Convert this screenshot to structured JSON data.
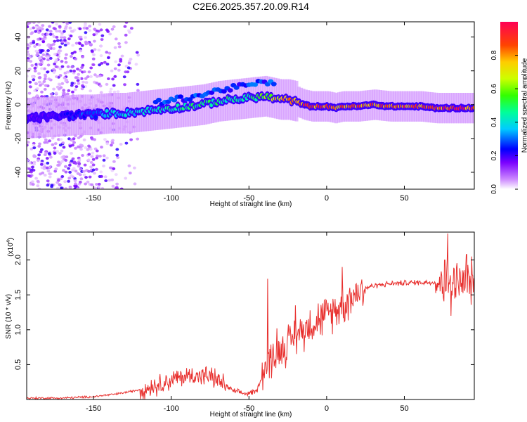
{
  "title": "C2E6.2025.357.20.09.R14",
  "chart_data": [
    {
      "type": "heatmap",
      "name": "spectrogram",
      "xlabel": "Height of straight line (km)",
      "ylabel": "Frequency (Hz)",
      "xlim": [
        -193,
        95
      ],
      "ylim": [
        -50,
        49
      ],
      "xticks": [
        -150,
        -100,
        -50,
        0,
        50
      ],
      "yticks": [
        -40,
        -20,
        0,
        20,
        40
      ],
      "colorbar": {
        "label": "Normalized spectral amplitude",
        "range": [
          0,
          1
        ],
        "ticks": [
          0.0,
          0.2,
          0.4,
          0.6,
          0.8
        ],
        "tick_labels": [
          "0.0",
          "0.2",
          "0.4",
          "0.6",
          "0.8"
        ]
      },
      "ridge": {
        "x": [
          -193,
          -175,
          -160,
          -150,
          -140,
          -130,
          -120,
          -110,
          -100,
          -90,
          -80,
          -70,
          -60,
          -50,
          -40,
          -35,
          -30,
          -25,
          -20,
          -15,
          -10,
          -5,
          0,
          5,
          10,
          20,
          30,
          40,
          50,
          60,
          70,
          80,
          95
        ],
        "freq": [
          -8,
          -7,
          -6,
          -6,
          -5,
          -5,
          -4,
          -3,
          -2,
          -1,
          0,
          2,
          3,
          4,
          5,
          4,
          3,
          3,
          2,
          0,
          -1,
          -1,
          -1,
          -2,
          -1,
          -1,
          0,
          -1,
          -1,
          -1,
          -2,
          -2,
          -2
        ],
        "amplitude": [
          0.2,
          0.2,
          0.3,
          0.3,
          0.4,
          0.4,
          0.4,
          0.45,
          0.45,
          0.5,
          0.5,
          0.5,
          0.5,
          0.5,
          0.6,
          0.7,
          0.8,
          0.8,
          0.85,
          0.9,
          0.9,
          0.9,
          0.9,
          0.85,
          0.9,
          0.9,
          0.9,
          0.9,
          0.9,
          0.9,
          0.95,
          0.95,
          0.95
        ]
      }
    },
    {
      "type": "line",
      "name": "snr",
      "xlabel": "Height of straight line (km)",
      "ylabel": "SNR (10 * v/v)",
      "scale_label": "(x10",
      "scale_exponent": "4",
      "scale_suffix": ")",
      "xlim": [
        -193,
        95
      ],
      "ylim": [
        0,
        2.4
      ],
      "xticks": [
        -150,
        -100,
        -50,
        0,
        50
      ],
      "yticks": [
        0.5,
        1.0,
        1.5,
        2.0
      ],
      "ytick_labels": [
        "0.5",
        "1.0",
        "1.5",
        "2.0"
      ],
      "units": "x10^4",
      "color": "#e8302e",
      "envelope": {
        "x": [
          -193,
          -170,
          -150,
          -135,
          -125,
          -115,
          -105,
          -95,
          -85,
          -75,
          -68,
          -60,
          -52,
          -45,
          -40,
          -35,
          -30,
          -25,
          -20,
          -15,
          -10,
          -5,
          0,
          5,
          10,
          15,
          20,
          25,
          30,
          40,
          50,
          60,
          70,
          75,
          80,
          85,
          90,
          95
        ],
        "value": [
          0.02,
          0.02,
          0.04,
          0.08,
          0.12,
          0.17,
          0.24,
          0.31,
          0.35,
          0.33,
          0.25,
          0.12,
          0.08,
          0.12,
          0.45,
          0.6,
          0.72,
          0.8,
          0.9,
          1.0,
          1.1,
          1.15,
          1.2,
          1.28,
          1.35,
          1.45,
          1.55,
          1.6,
          1.63,
          1.66,
          1.67,
          1.68,
          1.68,
          1.68,
          1.69,
          1.66,
          1.68,
          1.7
        ]
      },
      "spikes": [
        {
          "x": -38,
          "value": 1.73
        },
        {
          "x": -32,
          "value": 1.02
        },
        {
          "x": -20,
          "value": 1.35
        },
        {
          "x": 10,
          "value": 1.9
        },
        {
          "x": 76,
          "value": 2.0
        },
        {
          "x": 78,
          "value": 2.38
        },
        {
          "x": 80,
          "value": 1.2
        },
        {
          "x": 90,
          "value": 2.08
        }
      ],
      "noise": [
        {
          "x": [
            -193,
            -120
          ],
          "amplitude": 0.02
        },
        {
          "x": [
            -120,
            -65
          ],
          "amplitude": 0.18
        },
        {
          "x": [
            -65,
            -42
          ],
          "amplitude": 0.05
        },
        {
          "x": [
            -42,
            25
          ],
          "amplitude": 0.35
        },
        {
          "x": [
            25,
            70
          ],
          "amplitude": 0.05
        },
        {
          "x": [
            70,
            95
          ],
          "amplitude": 0.4
        }
      ]
    }
  ]
}
